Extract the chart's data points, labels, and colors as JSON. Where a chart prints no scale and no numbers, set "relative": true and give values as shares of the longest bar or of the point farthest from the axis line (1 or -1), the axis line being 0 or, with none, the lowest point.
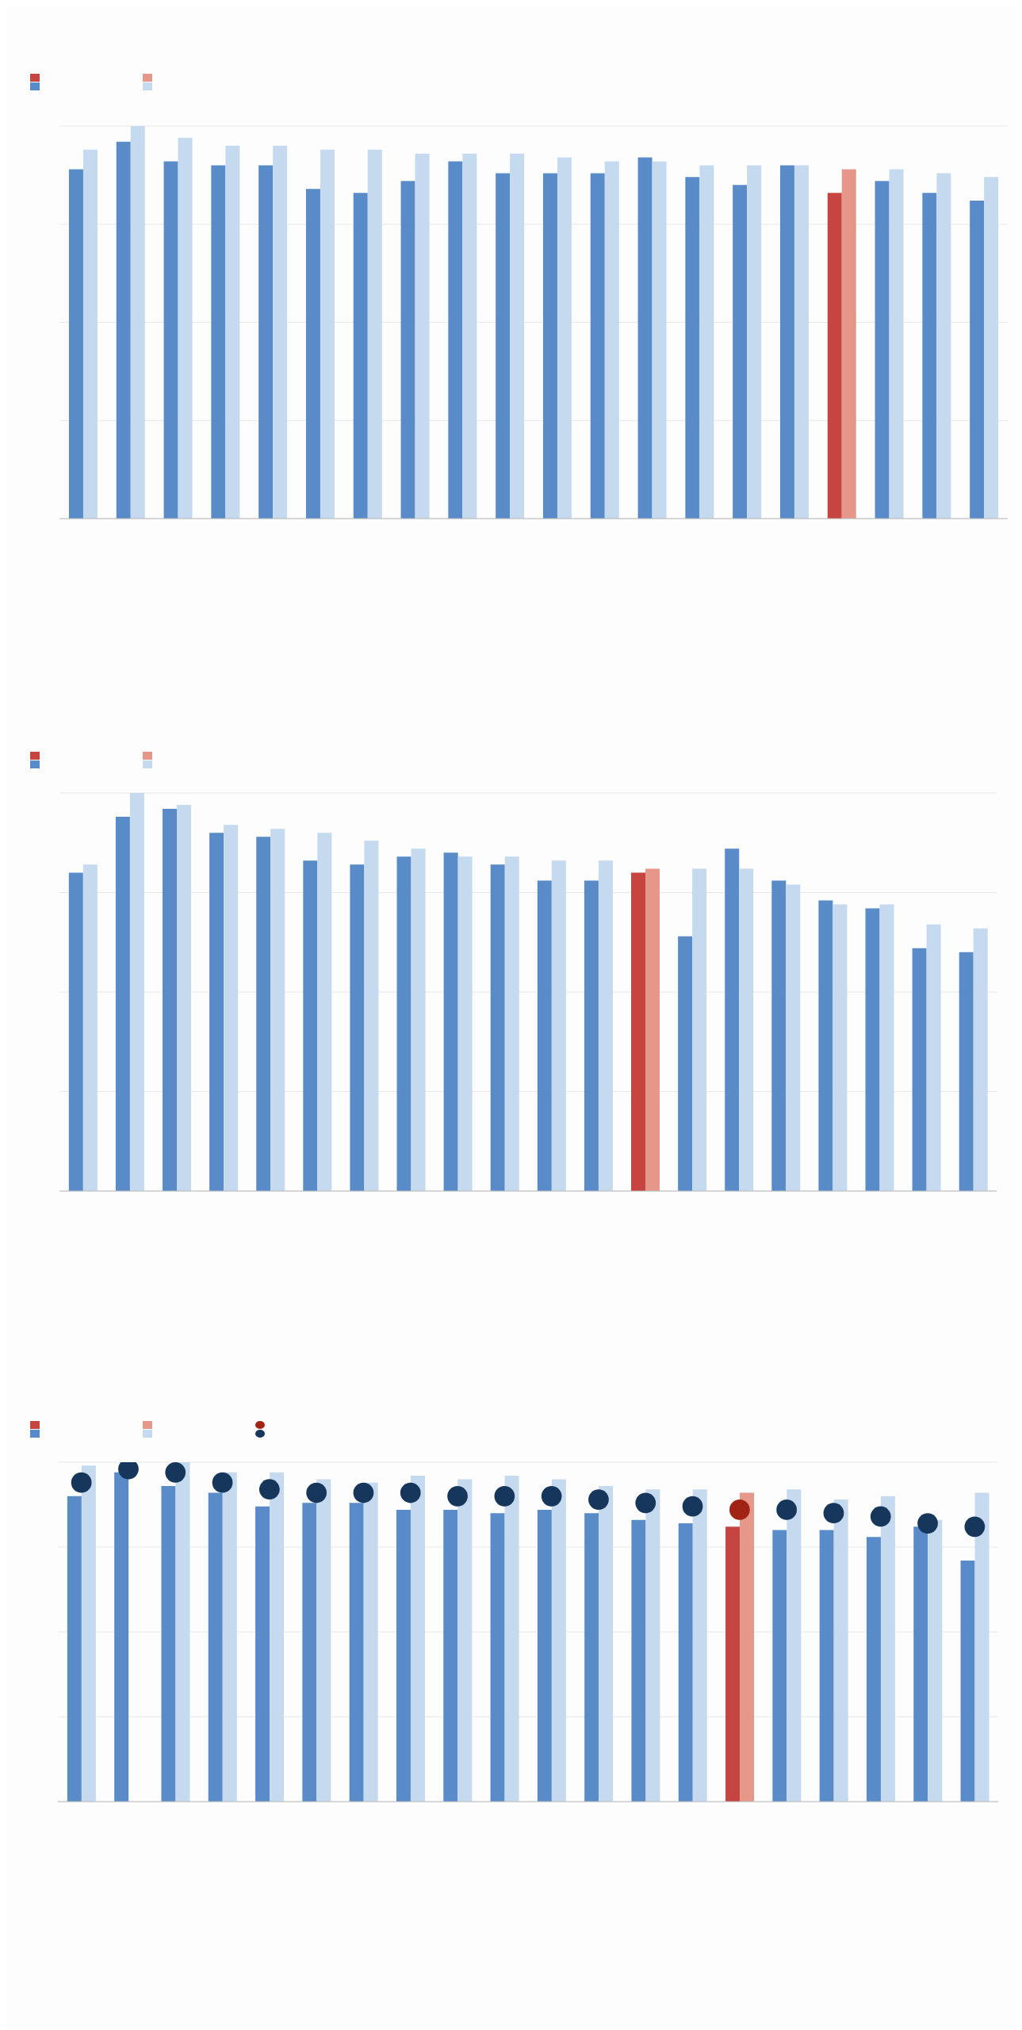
{
  "chart_data": [
    {
      "type": "bar",
      "relative": true,
      "grid": "y",
      "categories": [
        null,
        null,
        null,
        null,
        null,
        null,
        null,
        null,
        null,
        null,
        null,
        null,
        null,
        null,
        null,
        null,
        null,
        null,
        null,
        null
      ],
      "series": [
        {
          "color": "#588bc8",
          "colors": [
            "#588bc8",
            "#588bc8",
            "#588bc8",
            "#588bc8",
            "#588bc8",
            "#588bc8",
            "#588bc8",
            "#588bc8",
            "#588bc8",
            "#588bc8",
            "#588bc8",
            "#588bc8",
            "#588bc8",
            "#588bc8",
            "#588bc8",
            "#588bc8",
            "#c64541",
            "#588bc8",
            "#588bc8",
            "#588bc8"
          ],
          "values": [
            0.89,
            0.96,
            0.91,
            0.9,
            0.9,
            0.84,
            0.83,
            0.86,
            0.91,
            0.88,
            0.88,
            0.88,
            0.92,
            0.87,
            0.85,
            0.9,
            0.83,
            0.86,
            0.83,
            0.81
          ]
        },
        {
          "color": "#c5d9ef",
          "colors": [
            "#c5d9ef",
            "#c5d9ef",
            "#c5d9ef",
            "#c5d9ef",
            "#c5d9ef",
            "#c5d9ef",
            "#c5d9ef",
            "#c5d9ef",
            "#c5d9ef",
            "#c5d9ef",
            "#c5d9ef",
            "#c5d9ef",
            "#c5d9ef",
            "#c5d9ef",
            "#c5d9ef",
            "#c5d9ef",
            "#e5978a",
            "#c5d9ef",
            "#c5d9ef",
            "#c5d9ef"
          ],
          "values": [
            0.94,
            1,
            0.97,
            0.95,
            0.95,
            0.94,
            0.94,
            0.93,
            0.93,
            0.93,
            0.92,
            0.91,
            0.91,
            0.9,
            0.9,
            0.9,
            0.89,
            0.89,
            0.88,
            0.87
          ]
        }
      ]
    },
    {
      "type": "bar",
      "relative": true,
      "grid": "y",
      "categories": [
        null,
        null,
        null,
        null,
        null,
        null,
        null,
        null,
        null,
        null,
        null,
        null,
        null,
        null,
        null,
        null,
        null,
        null,
        null,
        null
      ],
      "series": [
        {
          "color": "#588bc8",
          "colors": [
            "#588bc8",
            "#588bc8",
            "#588bc8",
            "#588bc8",
            "#588bc8",
            "#588bc8",
            "#588bc8",
            "#588bc8",
            "#588bc8",
            "#588bc8",
            "#588bc8",
            "#588bc8",
            "#c64541",
            "#588bc8",
            "#588bc8",
            "#588bc8",
            "#588bc8",
            "#588bc8",
            "#588bc8",
            "#588bc8"
          ],
          "values": [
            0.8,
            0.94,
            0.96,
            0.9,
            0.89,
            0.83,
            0.82,
            0.84,
            0.85,
            0.82,
            0.78,
            0.78,
            0.8,
            0.64,
            0.86,
            0.78,
            0.73,
            0.71,
            0.61,
            0.6
          ]
        },
        {
          "color": "#c5d9ef",
          "colors": [
            "#c5d9ef",
            "#c5d9ef",
            "#c5d9ef",
            "#c5d9ef",
            "#c5d9ef",
            "#c5d9ef",
            "#c5d9ef",
            "#c5d9ef",
            "#c5d9ef",
            "#c5d9ef",
            "#c5d9ef",
            "#c5d9ef",
            "#e5978a",
            "#c5d9ef",
            "#c5d9ef",
            "#c5d9ef",
            "#c5d9ef",
            "#c5d9ef",
            "#c5d9ef",
            "#c5d9ef"
          ],
          "values": [
            0.82,
            1,
            0.97,
            0.92,
            0.91,
            0.9,
            0.88,
            0.86,
            0.84,
            0.84,
            0.83,
            0.83,
            0.81,
            0.81,
            0.81,
            0.77,
            0.72,
            0.72,
            0.67,
            0.66
          ]
        }
      ]
    },
    {
      "type": "bar",
      "relative": true,
      "grid": "y",
      "marker": "circle",
      "categories": [
        null,
        null,
        null,
        null,
        null,
        null,
        null,
        null,
        null,
        null,
        null,
        null,
        null,
        null,
        null,
        null,
        null,
        null,
        null,
        null
      ],
      "series": [
        {
          "color": "#588bc8",
          "colors": [
            "#588bc8",
            "#588bc8",
            "#588bc8",
            "#588bc8",
            "#588bc8",
            "#588bc8",
            "#588bc8",
            "#588bc8",
            "#588bc8",
            "#588bc8",
            "#588bc8",
            "#588bc8",
            "#588bc8",
            "#588bc8",
            "#c64541",
            "#588bc8",
            "#588bc8",
            "#588bc8",
            "#588bc8",
            "#588bc8"
          ],
          "values": [
            0.9,
            0.97,
            0.93,
            0.91,
            0.87,
            0.88,
            0.88,
            0.86,
            0.86,
            0.85,
            0.86,
            0.85,
            0.83,
            0.82,
            0.81,
            0.8,
            0.8,
            0.78,
            0.81,
            0.71
          ]
        },
        {
          "color": "#c5d9ef",
          "colors": [
            "#c5d9ef",
            "#c5d9ef",
            "#c5d9ef",
            "#c5d9ef",
            "#c5d9ef",
            "#c5d9ef",
            "#c5d9ef",
            "#c5d9ef",
            "#c5d9ef",
            "#c5d9ef",
            "#c5d9ef",
            "#c5d9ef",
            "#c5d9ef",
            "#c5d9ef",
            "#e5978a",
            "#c5d9ef",
            "#c5d9ef",
            "#c5d9ef",
            "#c5d9ef",
            "#c5d9ef"
          ],
          "values": [
            0.99,
            null,
            1,
            0.97,
            0.97,
            0.95,
            0.94,
            0.96,
            0.95,
            0.96,
            0.95,
            0.93,
            0.92,
            0.92,
            0.91,
            0.92,
            0.89,
            0.9,
            0.83,
            0.91
          ]
        },
        {
          "type": "scatter",
          "color": "#16365c",
          "colors": [
            "#16365c",
            "#16365c",
            "#16365c",
            "#16365c",
            "#16365c",
            "#16365c",
            "#16365c",
            "#16365c",
            "#16365c",
            "#16365c",
            "#16365c",
            "#16365c",
            "#16365c",
            "#16365c",
            "#a12315",
            "#16365c",
            "#16365c",
            "#16365c",
            "#16365c",
            "#16365c"
          ],
          "values": [
            0.94,
            0.98,
            0.97,
            0.94,
            0.92,
            0.91,
            0.91,
            0.91,
            0.9,
            0.9,
            0.9,
            0.89,
            0.88,
            0.87,
            0.86,
            0.86,
            0.85,
            0.84,
            0.82,
            0.81
          ]
        }
      ]
    }
  ]
}
